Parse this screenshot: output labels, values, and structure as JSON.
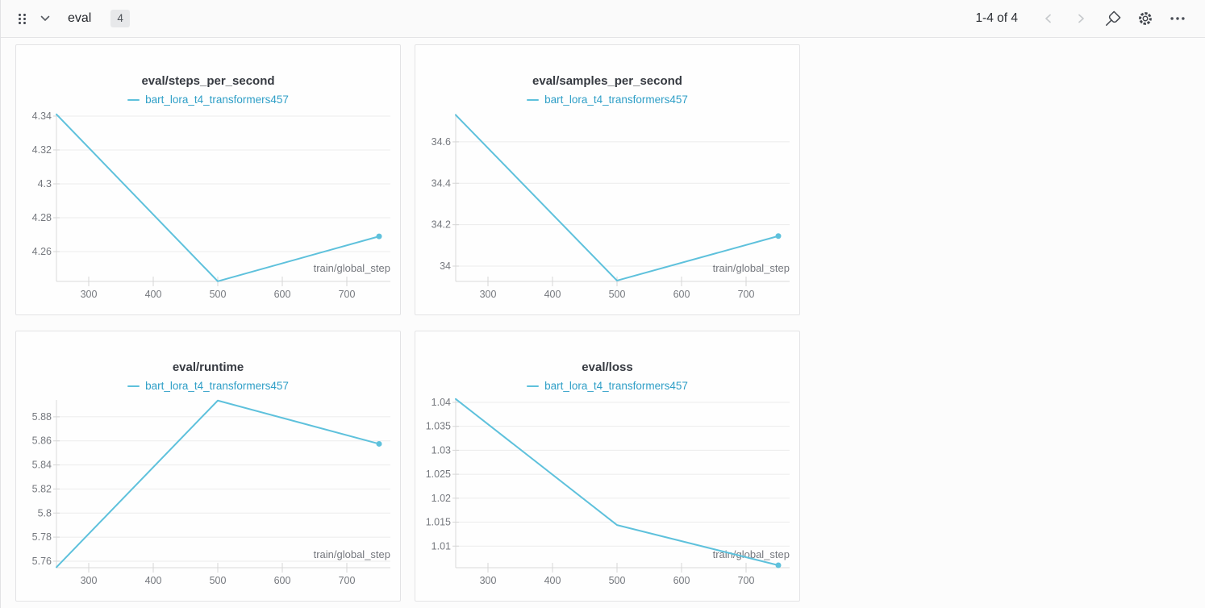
{
  "header": {
    "title": "eval",
    "count": "4"
  },
  "toolbar": {
    "pagination": "1-4 of 4"
  },
  "colors": {
    "line": "#5ec1dc",
    "legend_text": "#2f9fc7",
    "grid": "#ececec",
    "axis": "#d9d9d9",
    "tick_mark": "#d6d6d6",
    "tick_label": "#75787e"
  },
  "chart_data": [
    {
      "type": "line",
      "title": "eval/steps_per_second",
      "series": [
        {
          "name": "bart_lora_t4_transformers457",
          "x": [
            250,
            500,
            750
          ],
          "y": [
            4.341,
            4.2425,
            4.269
          ]
        }
      ],
      "xlabel": "train/global_step",
      "xticks": [
        300,
        400,
        500,
        600,
        700
      ],
      "yticks": [
        4.26,
        4.28,
        4.3,
        4.32,
        4.34
      ],
      "xlim": [
        250,
        750
      ],
      "ylim": [
        4.2424,
        4.3414
      ],
      "grid": "horizontal",
      "legend_position": "top",
      "end_marker": true
    },
    {
      "type": "line",
      "title": "eval/samples_per_second",
      "series": [
        {
          "name": "bart_lora_t4_transformers457",
          "x": [
            250,
            500,
            750
          ],
          "y": [
            34.73,
            33.93,
            34.145
          ]
        }
      ],
      "xlabel": "train/global_step",
      "xticks": [
        300,
        400,
        500,
        600,
        700
      ],
      "yticks": [
        34,
        34.2,
        34.4,
        34.6
      ],
      "xlim": [
        250,
        750
      ],
      "ylim": [
        33.926,
        34.736
      ],
      "grid": "horizontal",
      "legend_position": "top",
      "end_marker": true
    },
    {
      "type": "line",
      "title": "eval/runtime",
      "series": [
        {
          "name": "bart_lora_t4_transformers457",
          "x": [
            250,
            500,
            750
          ],
          "y": [
            5.755,
            5.8935,
            5.8575
          ]
        }
      ],
      "xlabel": "train/global_step",
      "xticks": [
        300,
        400,
        500,
        600,
        700
      ],
      "yticks": [
        5.76,
        5.78,
        5.8,
        5.82,
        5.84,
        5.86,
        5.88
      ],
      "xlim": [
        250,
        750
      ],
      "ylim": [
        5.7546,
        5.894
      ],
      "grid": "horizontal",
      "legend_position": "top",
      "end_marker": true
    },
    {
      "type": "line",
      "title": "eval/loss",
      "series": [
        {
          "name": "bart_lora_t4_transformers457",
          "x": [
            250,
            500,
            750
          ],
          "y": [
            1.0407,
            1.0144,
            1.006
          ]
        }
      ],
      "xlabel": "train/global_step",
      "xticks": [
        300,
        400,
        500,
        600,
        700
      ],
      "yticks": [
        1.01,
        1.015,
        1.02,
        1.025,
        1.03,
        1.035,
        1.04
      ],
      "xlim": [
        250,
        750
      ],
      "ylim": [
        1.0055,
        1.0405
      ],
      "grid": "horizontal",
      "legend_position": "top",
      "end_marker": true
    }
  ]
}
